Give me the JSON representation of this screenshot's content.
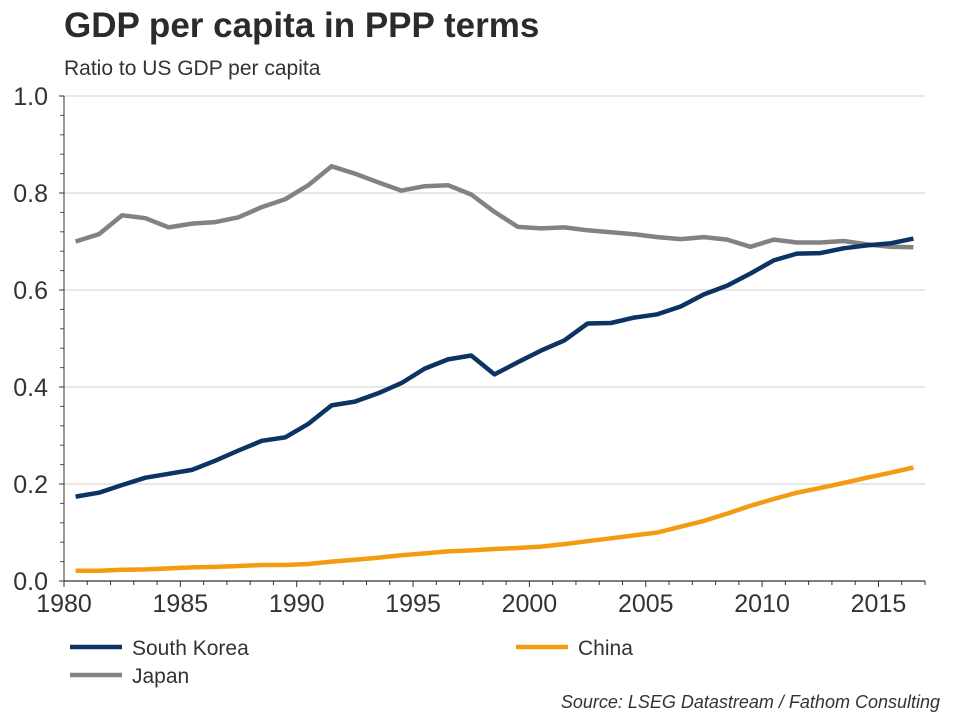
{
  "chart_data": {
    "type": "line",
    "title": "GDP per capita in PPP terms",
    "subtitle": "Ratio to US GDP per capita",
    "xlabel": "",
    "ylabel": "",
    "xlim": [
      1980,
      2017
    ],
    "ylim": [
      0.0,
      1.0
    ],
    "grid": true,
    "x_ticks": [
      1980,
      1985,
      1990,
      1995,
      2000,
      2005,
      2010,
      2015
    ],
    "x_tick_labels": [
      "1980",
      "1985",
      "1990",
      "1995",
      "2000",
      "2005",
      "2010",
      "2015"
    ],
    "y_ticks": [
      0.0,
      0.2,
      0.4,
      0.6,
      0.8,
      1.0
    ],
    "y_tick_labels": [
      "0.0",
      "0.2",
      "0.4",
      "0.6",
      "0.8",
      "1.0"
    ],
    "x": [
      1980,
      1981,
      1982,
      1983,
      1984,
      1985,
      1986,
      1987,
      1988,
      1989,
      1990,
      1991,
      1992,
      1993,
      1994,
      1995,
      1996,
      1997,
      1998,
      1999,
      2000,
      2001,
      2002,
      2003,
      2004,
      2005,
      2006,
      2007,
      2008,
      2009,
      2010,
      2011,
      2012,
      2013,
      2014,
      2015,
      2016
    ],
    "series": [
      {
        "name": "South Korea",
        "color": "#0b3463",
        "values": [
          0.174,
          0.182,
          0.198,
          0.213,
          0.221,
          0.229,
          0.248,
          0.269,
          0.289,
          0.296,
          0.324,
          0.362,
          0.37,
          0.387,
          0.408,
          0.438,
          0.457,
          0.465,
          0.426,
          0.451,
          0.475,
          0.496,
          0.531,
          0.532,
          0.543,
          0.55,
          0.566,
          0.591,
          0.609,
          0.634,
          0.661,
          0.675,
          0.676,
          0.686,
          0.692,
          0.696,
          0.706
        ]
      },
      {
        "name": "China",
        "color": "#f39c12",
        "values": [
          0.021,
          0.021,
          0.023,
          0.024,
          0.026,
          0.028,
          0.029,
          0.031,
          0.033,
          0.033,
          0.035,
          0.04,
          0.044,
          0.048,
          0.053,
          0.057,
          0.061,
          0.063,
          0.066,
          0.068,
          0.071,
          0.076,
          0.082,
          0.088,
          0.094,
          0.1,
          0.112,
          0.124,
          0.139,
          0.155,
          0.169,
          0.182,
          0.192,
          0.202,
          0.213,
          0.223,
          0.234
        ]
      },
      {
        "name": "Japan",
        "color": "#828282",
        "values": [
          0.7,
          0.715,
          0.754,
          0.748,
          0.729,
          0.737,
          0.74,
          0.75,
          0.771,
          0.787,
          0.816,
          0.855,
          0.84,
          0.822,
          0.805,
          0.814,
          0.816,
          0.797,
          0.761,
          0.73,
          0.727,
          0.729,
          0.723,
          0.719,
          0.715,
          0.709,
          0.705,
          0.709,
          0.704,
          0.689,
          0.704,
          0.698,
          0.698,
          0.701,
          0.694,
          0.689,
          0.688
        ]
      }
    ],
    "legend": {
      "position": "bottom",
      "entries": [
        "South Korea",
        "China",
        "Japan"
      ]
    },
    "source": "Source: LSEG Datastream / Fathom Consulting"
  }
}
